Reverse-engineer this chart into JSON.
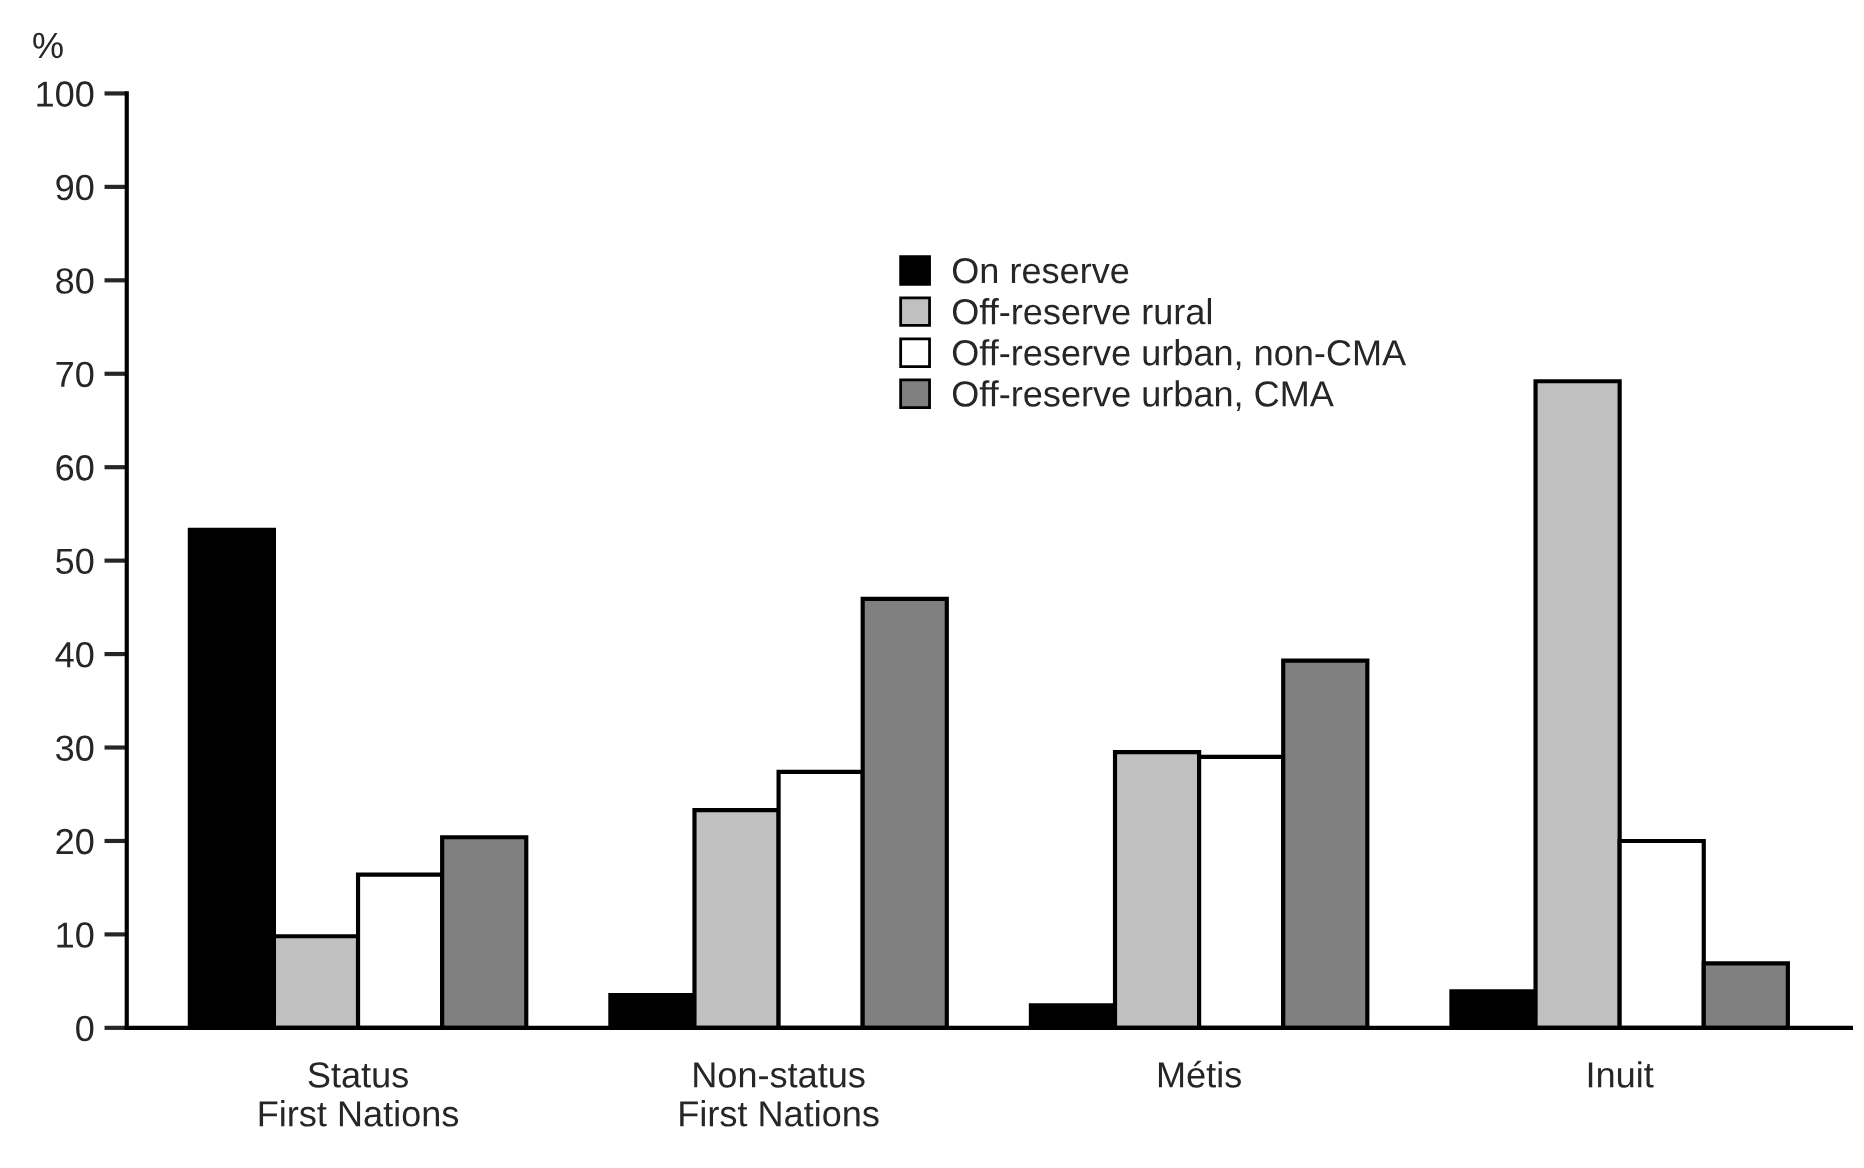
{
  "chart_data": {
    "type": "bar",
    "ylabel": "%",
    "categories": [
      "Status\nFirst Nations",
      "Non-status\nFirst Nations",
      "Métis",
      "Inuit"
    ],
    "series": [
      {
        "name": "On reserve",
        "color": "#000000",
        "values": [
          53.3,
          3.5,
          2.4,
          3.9
        ]
      },
      {
        "name": "Off-reserve rural",
        "color": "#c0c0c0",
        "values": [
          9.8,
          23.3,
          29.5,
          69.2
        ]
      },
      {
        "name": "Off-reserve urban, non-CMA",
        "color": "#ffffff",
        "values": [
          16.4,
          27.4,
          29.0,
          20.0
        ]
      },
      {
        "name": "Off-reserve urban, CMA",
        "color": "#808080",
        "values": [
          20.4,
          45.9,
          39.3,
          6.9
        ]
      }
    ],
    "ylim": [
      0,
      100
    ],
    "yticks": [
      0,
      10,
      20,
      30,
      40,
      50,
      60,
      70,
      80,
      90,
      100
    ],
    "grid": false,
    "legend": "top"
  }
}
